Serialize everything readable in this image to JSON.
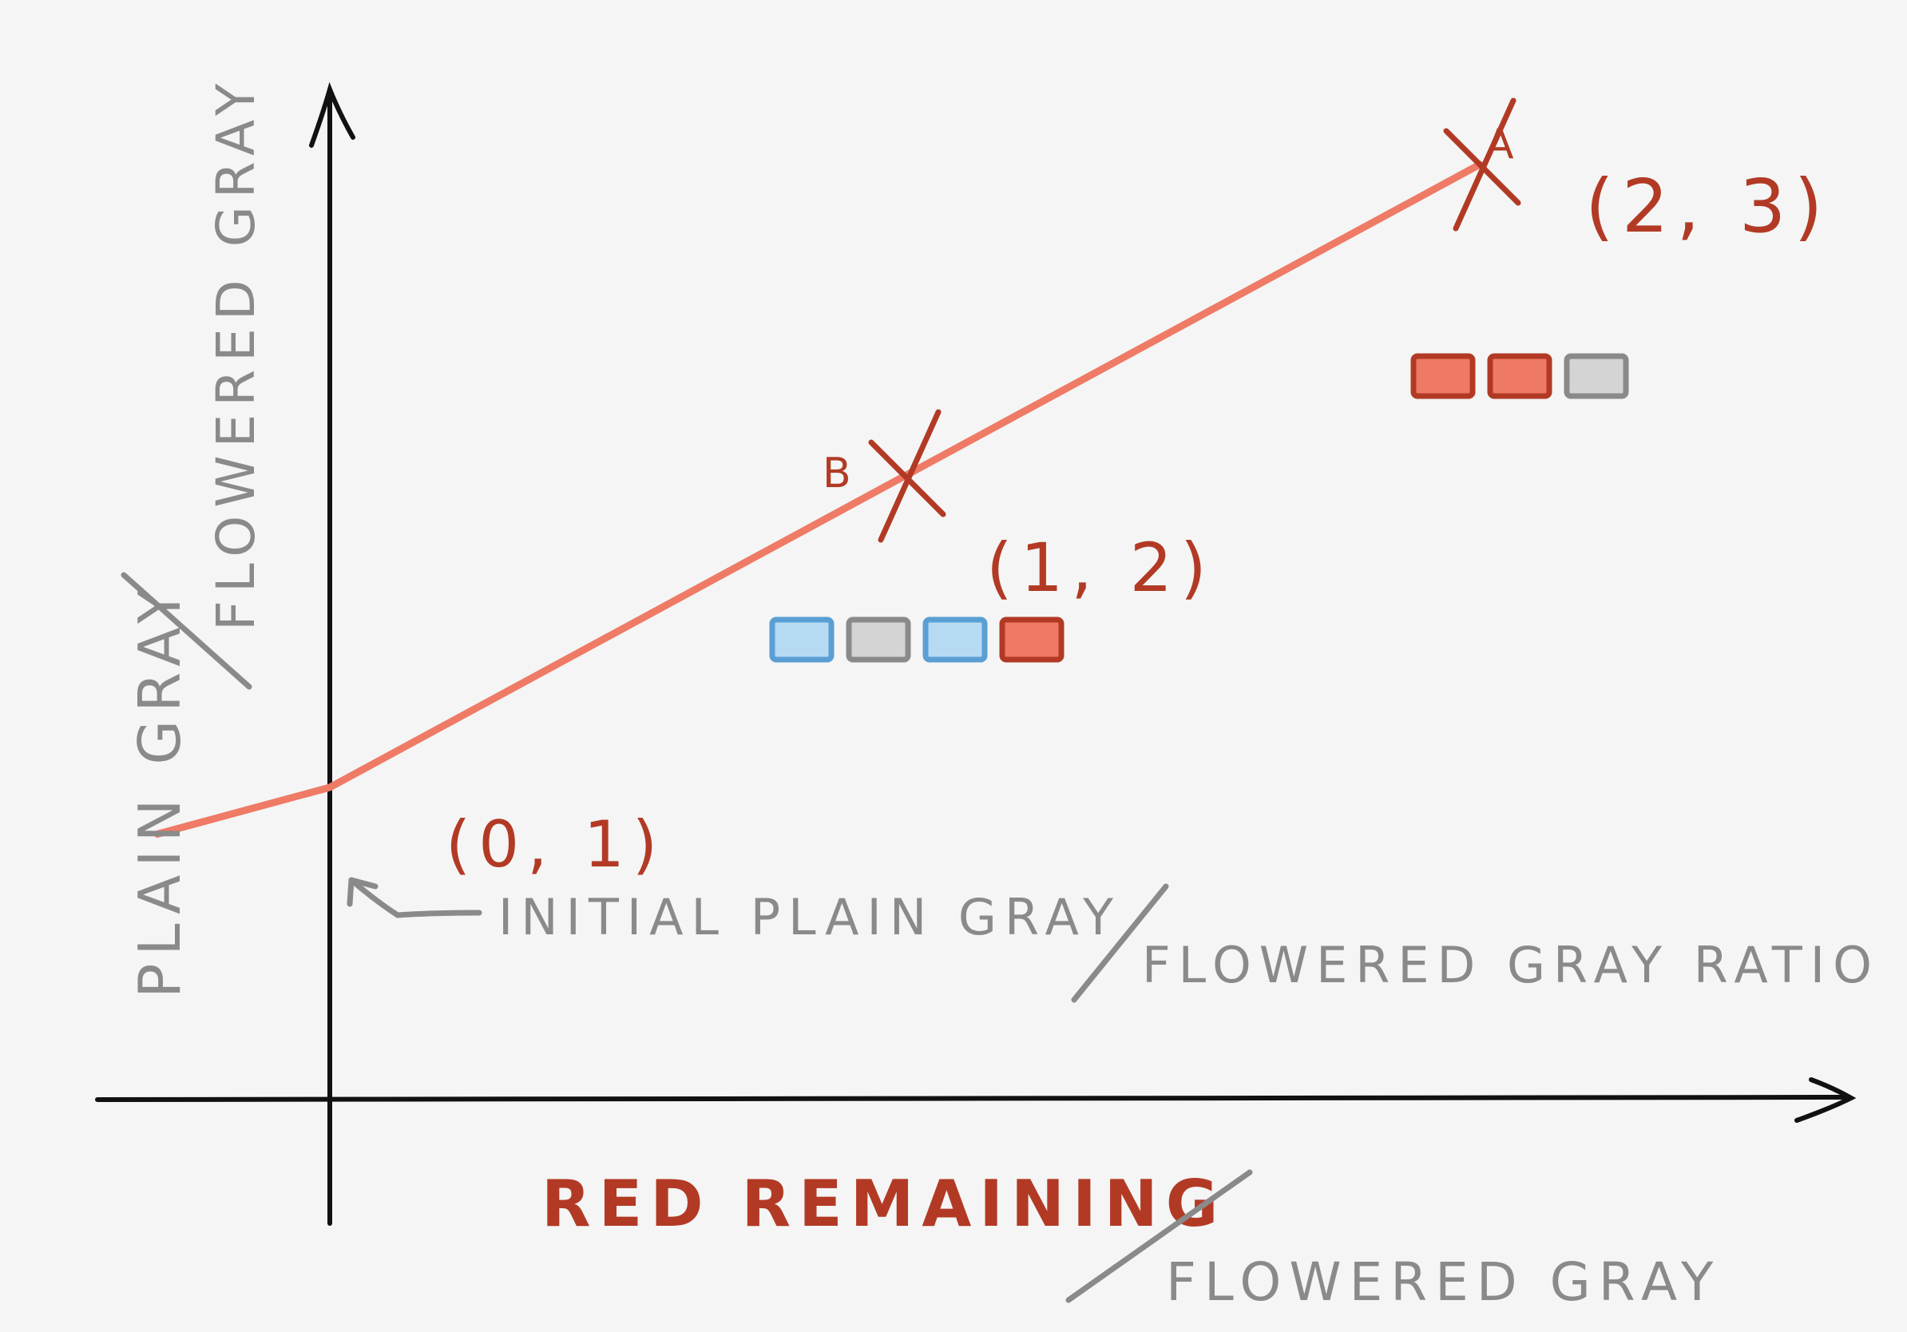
{
  "colors": {
    "background": "#f4f5f4",
    "axis": "#111111",
    "line": "#ef7a66",
    "label_red": "#b23a25",
    "label_gray": "#8a8a8a",
    "block_red_fill": "#ee7a65",
    "block_red_stroke": "#b23a25",
    "block_gray_fill": "#d4d4d4",
    "block_gray_stroke": "#8a8a8a",
    "block_blue_fill": "#b7daf3",
    "block_blue_stroke": "#5a9fd4"
  },
  "chart_data": {
    "type": "line",
    "series": [
      {
        "x": [
          -0.3,
          0,
          1,
          2
        ],
        "y": [
          0.85,
          1,
          2,
          3
        ]
      }
    ],
    "points": [
      {
        "name": "A",
        "x": 2,
        "y": 3,
        "label": "(2, 3)",
        "blocks": [
          "red",
          "red",
          "gray"
        ]
      },
      {
        "name": "B",
        "x": 1,
        "y": 2,
        "label": "(1, 2)",
        "blocks": [
          "blue",
          "gray",
          "blue",
          "red"
        ]
      },
      {
        "name": "",
        "x": 0,
        "y": 1,
        "label": "(0, 1)",
        "blocks": []
      }
    ],
    "annotation": {
      "line1": "INITIAL PLAIN GRAY",
      "line2": "FLOWERED GRAY RATIO"
    },
    "xlabel_top": "RED REMAINING",
    "xlabel_bottom": "FLOWERED GRAY",
    "ylabel_top": "FLOWERED GRAY",
    "ylabel_bottom": "PLAIN GRAY",
    "xlim": [
      -0.75,
      4.2
    ],
    "ylim": [
      -0.4,
      3.7
    ],
    "grid": false
  }
}
